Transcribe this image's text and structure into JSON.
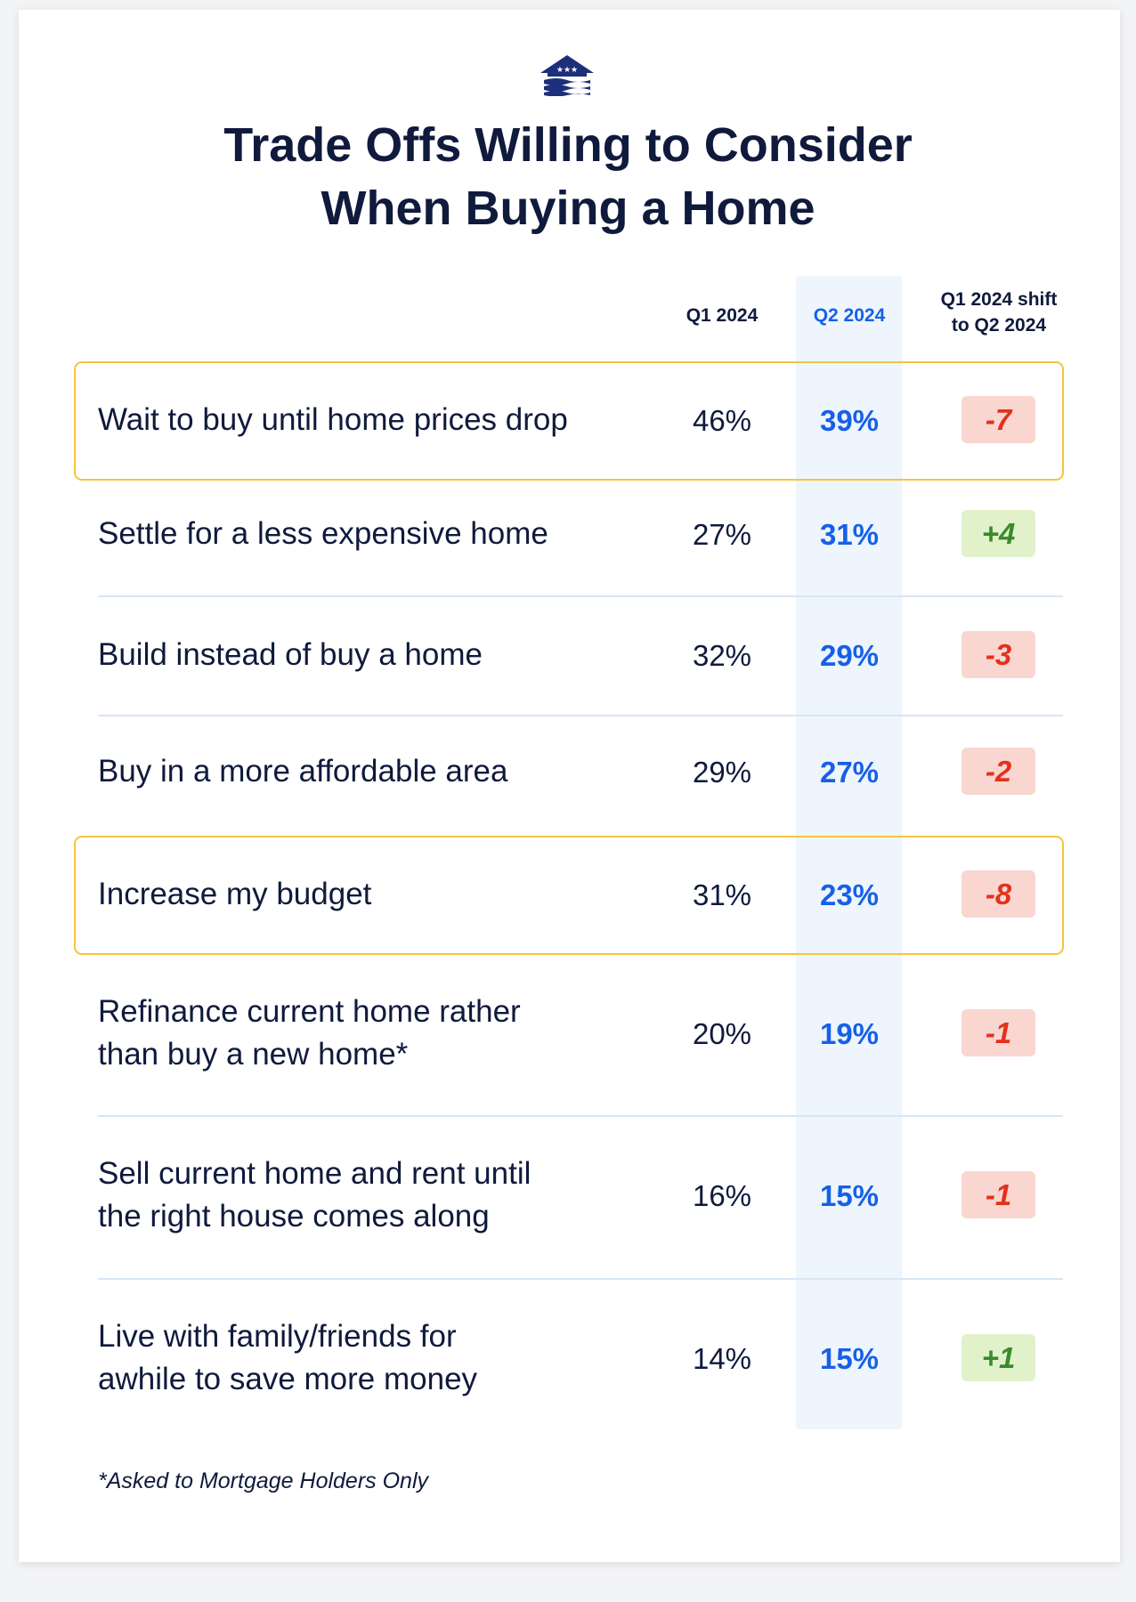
{
  "header": {
    "title_lines": [
      "Trade Offs Willing to Consider",
      "When Buying a Home"
    ]
  },
  "table": {
    "columns": [
      [
        "Q1 2024"
      ],
      [
        "Q2 2024"
      ],
      [
        "Q1 2024 shift",
        "to Q2 2024"
      ]
    ],
    "highlighted_rows": [
      0,
      4
    ],
    "rows": [
      {
        "label": [
          "Wait to buy until home prices drop"
        ],
        "q1": "46%",
        "q2": "39%",
        "shift": "-7"
      },
      {
        "label": [
          "Settle for a less expensive home"
        ],
        "q1": "27%",
        "q2": "31%",
        "shift": "+4"
      },
      {
        "label": [
          "Build instead of buy a home"
        ],
        "q1": "32%",
        "q2": "29%",
        "shift": "-3"
      },
      {
        "label": [
          "Buy in a more affordable area"
        ],
        "q1": "29%",
        "q2": "27%",
        "shift": "-2"
      },
      {
        "label": [
          "Increase my budget"
        ],
        "q1": "31%",
        "q2": "23%",
        "shift": "-8"
      },
      {
        "label": [
          "Refinance current home rather",
          "than buy a new home*"
        ],
        "q1": "20%",
        "q2": "19%",
        "shift": "-1"
      },
      {
        "label": [
          "Sell current home and rent until",
          "the right house comes along"
        ],
        "q1": "16%",
        "q2": "15%",
        "shift": "-1"
      },
      {
        "label": [
          "Live with family/friends for",
          "awhile to save more money"
        ],
        "q1": "14%",
        "q2": "15%",
        "shift": "+1"
      }
    ]
  },
  "footnote": "*Asked to Mortgage Holders Only"
}
